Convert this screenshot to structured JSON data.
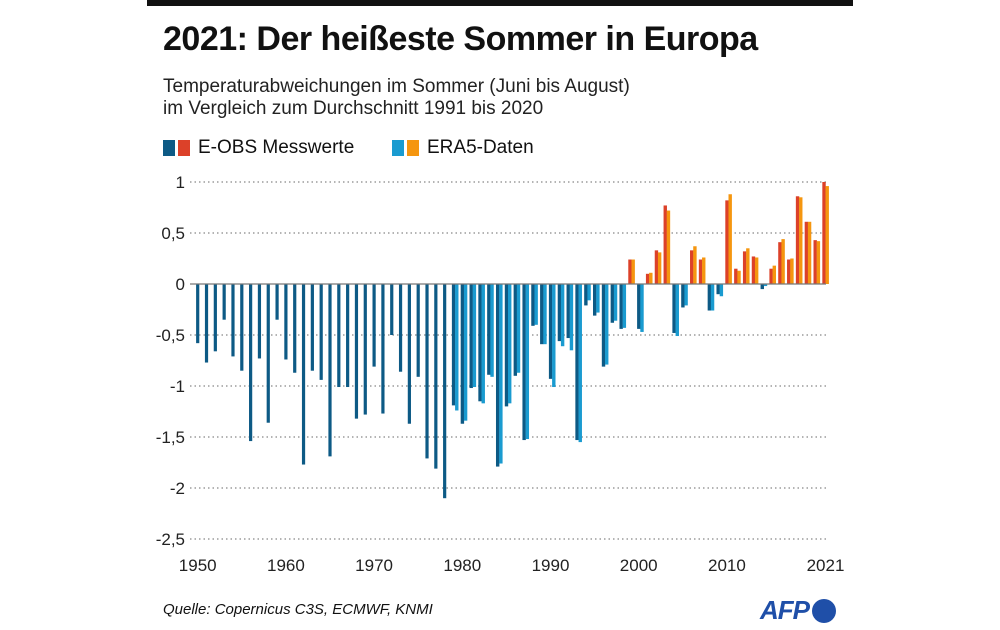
{
  "title": "2021: Der heißeste Sommer in Europa",
  "subtitle_lines": [
    "Temperaturabweichungen im Sommer (Juni bis August)",
    "im Vergleich zum Durchschnitt 1991 bis 2020"
  ],
  "source": "Quelle: Copernicus C3S, ECMWF, KNMI",
  "logo": "AFP",
  "colors": {
    "eobs_neg": "#0d5a85",
    "eobs_pos": "#dc4129",
    "era5_neg": "#1a9bd0",
    "era5_pos": "#f5960f"
  },
  "chart_data": {
    "type": "bar",
    "title": "2021: Der heißeste Sommer in Europa",
    "xlabel": "",
    "ylabel": "",
    "ylim": [
      -2.5,
      1
    ],
    "yticks": [
      1,
      0.5,
      0,
      -0.5,
      -1,
      -1.5,
      -2,
      -2.5
    ],
    "ytick_labels": [
      "1",
      "0,5",
      "0",
      "-0,5",
      "-1",
      "-1,5",
      "-2",
      "-2,5"
    ],
    "xticks": [
      1950,
      1960,
      1970,
      1980,
      1990,
      2000,
      2010,
      2021
    ],
    "xtick_labels": [
      "1950",
      "1960",
      "1970",
      "1980",
      "1990",
      "2000",
      "2010",
      "2021"
    ],
    "grid": "horizontal dotted",
    "legend": "top-left",
    "years_start": 1950,
    "series": [
      {
        "name": "E-OBS Messwerte",
        "start": 1950,
        "values": [
          -0.58,
          -0.77,
          -0.66,
          -0.35,
          -0.71,
          -0.85,
          -1.54,
          -0.73,
          -1.36,
          -0.35,
          -0.74,
          -0.87,
          -1.77,
          -0.85,
          -0.94,
          -1.69,
          -1.01,
          -1.01,
          -1.32,
          -1.28,
          -0.81,
          -1.27,
          -0.5,
          -0.86,
          -1.37,
          -0.91,
          -1.71,
          -1.81,
          -2.1,
          -1.19,
          -1.37,
          -1.02,
          -1.15,
          -0.89,
          -1.79,
          -1.2,
          -0.9,
          -1.53,
          -0.41,
          -0.59,
          -0.93,
          -0.56,
          -0.53,
          -1.53,
          -0.21,
          -0.31,
          -0.81,
          -0.38,
          -0.44,
          0.24,
          -0.44,
          0.1,
          0.33,
          0.77,
          -0.48,
          -0.23,
          0.33,
          0.24,
          -0.26,
          -0.1,
          0.82,
          0.15,
          0.32,
          0.27,
          -0.05,
          0.15,
          0.41,
          0.24,
          0.86,
          0.61,
          0.43,
          1.0
        ]
      },
      {
        "name": "ERA5-Daten",
        "start": 1979,
        "values": [
          -1.24,
          -1.34,
          -1.01,
          -1.17,
          -0.91,
          -1.76,
          -1.17,
          -0.87,
          -1.52,
          -0.4,
          -0.59,
          -1.01,
          -0.61,
          -0.65,
          -1.55,
          -0.16,
          -0.28,
          -0.79,
          -0.36,
          -0.43,
          0.24,
          -0.47,
          0.11,
          0.31,
          0.72,
          -0.51,
          -0.21,
          0.37,
          0.26,
          -0.26,
          -0.12,
          0.88,
          0.13,
          0.35,
          0.26,
          -0.02,
          0.18,
          0.44,
          0.25,
          0.85,
          0.61,
          0.42,
          0.96
        ]
      }
    ]
  }
}
